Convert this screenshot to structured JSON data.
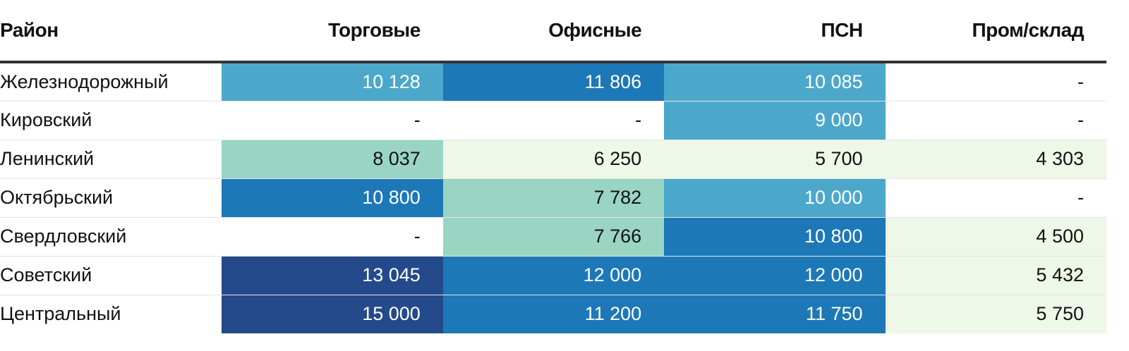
{
  "chart_data": {
    "type": "table",
    "columns": [
      "Район",
      "Торговые",
      "Офисные",
      "ПСН",
      "Пром/склад"
    ],
    "rows": [
      {
        "district": "Железнодорожный",
        "values": [
          "10 128",
          "11 806",
          "10 085",
          "-"
        ],
        "numeric": [
          10128,
          11806,
          10085,
          null
        ]
      },
      {
        "district": "Кировский",
        "values": [
          "-",
          "-",
          "9 000",
          "-"
        ],
        "numeric": [
          null,
          null,
          9000,
          null
        ]
      },
      {
        "district": "Ленинский",
        "values": [
          "8 037",
          "6 250",
          "5 700",
          "4 303"
        ],
        "numeric": [
          8037,
          6250,
          5700,
          4303
        ]
      },
      {
        "district": "Октябрьский",
        "values": [
          "10 800",
          "7 782",
          "10 000",
          "-"
        ],
        "numeric": [
          10800,
          7782,
          10000,
          null
        ]
      },
      {
        "district": "Свердловский",
        "values": [
          "-",
          "7 766",
          "10 800",
          "4 500"
        ],
        "numeric": [
          null,
          7766,
          10800,
          4500
        ]
      },
      {
        "district": "Советский",
        "values": [
          "13 045",
          "12 000",
          "12 000",
          "5 432"
        ],
        "numeric": [
          13045,
          12000,
          12000,
          5432
        ]
      },
      {
        "district": "Центральный",
        "values": [
          "15 000",
          "11 200",
          "11 750",
          "5 750"
        ],
        "numeric": [
          15000,
          11200,
          11750,
          5750
        ]
      }
    ],
    "color_scale": {
      "thresholds": [
        {
          "min": 0,
          "max": 7000,
          "color": "#eef8e8",
          "text": "#111111"
        },
        {
          "min": 7000,
          "max": 9000,
          "color": "#99d5c2",
          "text": "#111111"
        },
        {
          "min": 9000,
          "max": 10500,
          "color": "#4ba8cb",
          "text": "#ffffff"
        },
        {
          "min": 10500,
          "max": 12500,
          "color": "#1d78b8",
          "text": "#ffffff"
        },
        {
          "min": 12500,
          "max": 100000,
          "color": "#244a8c",
          "text": "#ffffff"
        }
      ],
      "empty_color": "#ffffff",
      "empty_text": "#111111"
    }
  }
}
